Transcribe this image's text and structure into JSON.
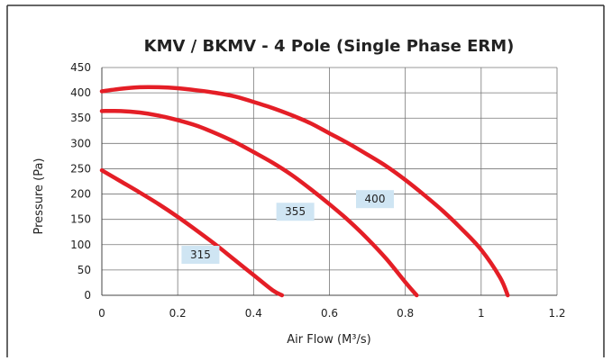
{
  "chart_data": {
    "type": "line",
    "title": "KMV / BKMV  - 4 Pole (Single Phase ERM)",
    "xlabel": "Air Flow (M³/s)",
    "ylabel": "Pressure (Pa)",
    "xlim": [
      0,
      1.2
    ],
    "ylim": [
      0,
      450
    ],
    "x_ticks": [
      "0",
      "0.2",
      "0.4",
      "0.6",
      "0.8",
      "1",
      "1.2"
    ],
    "y_ticks": [
      "0",
      "50",
      "100",
      "150",
      "200",
      "250",
      "300",
      "350",
      "400",
      "450"
    ],
    "grid": true,
    "line_color": "#e41e26",
    "label_bg": "#cfe5f3",
    "series": [
      {
        "name": "315",
        "x": [
          0,
          0.05,
          0.1,
          0.15,
          0.2,
          0.25,
          0.3,
          0.35,
          0.4,
          0.45,
          0.475
        ],
        "y": [
          247,
          225,
          203,
          180,
          155,
          128,
          100,
          70,
          40,
          10,
          0
        ],
        "label_pos": [
          0.26,
          80
        ]
      },
      {
        "name": "355",
        "x": [
          0,
          0.05,
          0.1,
          0.15,
          0.2,
          0.25,
          0.3,
          0.35,
          0.4,
          0.45,
          0.5,
          0.55,
          0.6,
          0.65,
          0.7,
          0.75,
          0.8,
          0.83
        ],
        "y": [
          364,
          364,
          361,
          355,
          346,
          335,
          320,
          303,
          283,
          262,
          238,
          210,
          180,
          148,
          112,
          72,
          26,
          0
        ],
        "label_pos": [
          0.51,
          165
        ]
      },
      {
        "name": "400",
        "x": [
          0,
          0.05,
          0.1,
          0.15,
          0.2,
          0.25,
          0.3,
          0.35,
          0.4,
          0.45,
          0.5,
          0.55,
          0.6,
          0.65,
          0.7,
          0.75,
          0.8,
          0.85,
          0.9,
          0.95,
          1.0,
          1.05,
          1.07
        ],
        "y": [
          403,
          408,
          411,
          411,
          409,
          405,
          400,
          393,
          382,
          370,
          356,
          340,
          320,
          300,
          278,
          255,
          228,
          198,
          166,
          130,
          90,
          35,
          0
        ],
        "label_pos": [
          0.72,
          190
        ]
      }
    ]
  }
}
